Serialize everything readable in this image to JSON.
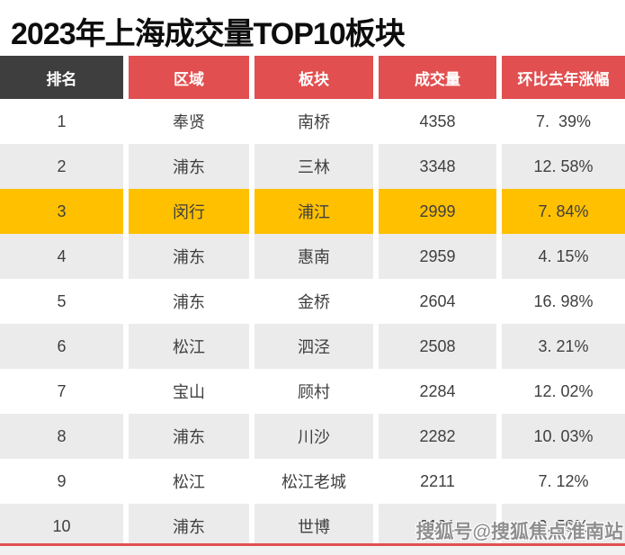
{
  "title": "2023年上海成交量TOP10板块",
  "table": {
    "columns": [
      {
        "key": "rank",
        "label": "排名"
      },
      {
        "key": "region",
        "label": "区域"
      },
      {
        "key": "area",
        "label": "板块"
      },
      {
        "key": "volume",
        "label": "成交量"
      },
      {
        "key": "yoy",
        "label": "环比去年涨幅"
      }
    ],
    "rows": [
      {
        "rank": "1",
        "region": "奉贤",
        "area": "南桥",
        "volume": "4358",
        "yoy": "7.  39%",
        "highlight": false
      },
      {
        "rank": "2",
        "region": "浦东",
        "area": "三林",
        "volume": "3348",
        "yoy": "12. 58%",
        "highlight": false
      },
      {
        "rank": "3",
        "region": "闵行",
        "area": "浦江",
        "volume": "2999",
        "yoy": "7. 84%",
        "highlight": true
      },
      {
        "rank": "4",
        "region": "浦东",
        "area": "惠南",
        "volume": "2959",
        "yoy": "4. 15%",
        "highlight": false
      },
      {
        "rank": "5",
        "region": "浦东",
        "area": "金桥",
        "volume": "2604",
        "yoy": "16. 98%",
        "highlight": false
      },
      {
        "rank": "6",
        "region": "松江",
        "area": "泗泾",
        "volume": "2508",
        "yoy": "3. 21%",
        "highlight": false
      },
      {
        "rank": "7",
        "region": "宝山",
        "area": "顾村",
        "volume": "2284",
        "yoy": "12. 02%",
        "highlight": false
      },
      {
        "rank": "8",
        "region": "浦东",
        "area": "川沙",
        "volume": "2282",
        "yoy": "10. 03%",
        "highlight": false
      },
      {
        "rank": "9",
        "region": "松江",
        "area": "松江老城",
        "volume": "2211",
        "yoy": "7. 12%",
        "highlight": false
      },
      {
        "rank": "10",
        "region": "浦东",
        "area": "世博",
        "volume": "2191",
        "yoy": "9. 50%",
        "highlight": false
      }
    ]
  },
  "watermark": {
    "text": "搜狐号@搜狐焦点淮南站"
  },
  "colors": {
    "header_red": "#E24F50",
    "header_dark": "#3E3E3E",
    "highlight_yellow": "#FFC000",
    "row_alt_gray": "#EBEBEB",
    "bottom_line_red": "#E24F50",
    "bottom_strip_gray": "#F1F1F1",
    "text_dark": "#3F3F3F"
  },
  "chart_data": {
    "type": "table",
    "title": "2023年上海成交量TOP10板块",
    "columns": [
      "排名",
      "区域",
      "板块",
      "成交量",
      "环比去年涨幅"
    ],
    "rows": [
      [
        1,
        "奉贤",
        "南桥",
        4358,
        "7.39%"
      ],
      [
        2,
        "浦东",
        "三林",
        3348,
        "12.58%"
      ],
      [
        3,
        "闵行",
        "浦江",
        2999,
        "7.84%"
      ],
      [
        4,
        "浦东",
        "惠南",
        2959,
        "4.15%"
      ],
      [
        5,
        "浦东",
        "金桥",
        2604,
        "16.98%"
      ],
      [
        6,
        "松江",
        "泗泾",
        2508,
        "3.21%"
      ],
      [
        7,
        "宝山",
        "顾村",
        2284,
        "12.02%"
      ],
      [
        8,
        "浦东",
        "川沙",
        2282,
        "10.03%"
      ],
      [
        9,
        "松江",
        "松江老城",
        2211,
        "7.12%"
      ],
      [
        10,
        "浦东",
        "世博",
        2191,
        "9.50%"
      ]
    ],
    "highlighted_row_rank": 3,
    "layout": {
      "header_style": "rank column dark gray, others red",
      "row_striping": "white / light gray alternating",
      "row_3": "gold highlight"
    }
  }
}
